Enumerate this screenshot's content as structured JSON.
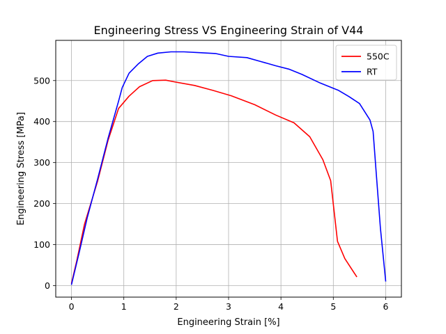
{
  "chart_data": {
    "type": "line",
    "title": "Engineering Stress VS Engineering Strain of V44",
    "xlabel": "Engineering Strain  [%]",
    "ylabel": "Engineering Stress [MPa]",
    "xlim": [
      -0.3,
      6.3
    ],
    "ylim": [
      -28,
      598
    ],
    "xticks": [
      0,
      1,
      2,
      3,
      4,
      5,
      6
    ],
    "yticks": [
      0,
      100,
      200,
      300,
      400,
      500
    ],
    "grid": true,
    "legend_position": "top-right",
    "series": [
      {
        "name": "550C",
        "color": "#ff0000",
        "points": [
          [
            0.0,
            5
          ],
          [
            0.1,
            60
          ],
          [
            0.25,
            150
          ],
          [
            0.5,
            255
          ],
          [
            0.7,
            355
          ],
          [
            0.9,
            432
          ],
          [
            1.1,
            462
          ],
          [
            1.3,
            485
          ],
          [
            1.55,
            500
          ],
          [
            1.8,
            501
          ],
          [
            2.0,
            496
          ],
          [
            2.35,
            488
          ],
          [
            2.7,
            476
          ],
          [
            3.05,
            463
          ],
          [
            3.5,
            441
          ],
          [
            3.9,
            416
          ],
          [
            4.25,
            397
          ],
          [
            4.55,
            363
          ],
          [
            4.8,
            307
          ],
          [
            4.95,
            256
          ],
          [
            5.08,
            108
          ],
          [
            5.22,
            66
          ],
          [
            5.45,
            21
          ]
        ]
      },
      {
        "name": "RT",
        "color": "#0000ff",
        "points": [
          [
            0.0,
            2
          ],
          [
            0.15,
            82
          ],
          [
            0.3,
            165
          ],
          [
            0.5,
            260
          ],
          [
            0.7,
            360
          ],
          [
            0.9,
            450
          ],
          [
            0.97,
            483
          ],
          [
            1.1,
            518
          ],
          [
            1.28,
            541
          ],
          [
            1.45,
            559
          ],
          [
            1.65,
            567
          ],
          [
            1.9,
            570
          ],
          [
            2.15,
            570
          ],
          [
            2.45,
            568
          ],
          [
            2.75,
            566
          ],
          [
            3.0,
            559
          ],
          [
            3.35,
            556
          ],
          [
            3.6,
            547
          ],
          [
            3.9,
            536
          ],
          [
            4.15,
            528
          ],
          [
            4.4,
            515
          ],
          [
            4.75,
            494
          ],
          [
            5.1,
            476
          ],
          [
            5.3,
            461
          ],
          [
            5.5,
            444
          ],
          [
            5.7,
            404
          ],
          [
            5.76,
            376
          ],
          [
            5.83,
            256
          ],
          [
            5.9,
            140
          ],
          [
            6.0,
            10
          ]
        ]
      }
    ]
  }
}
